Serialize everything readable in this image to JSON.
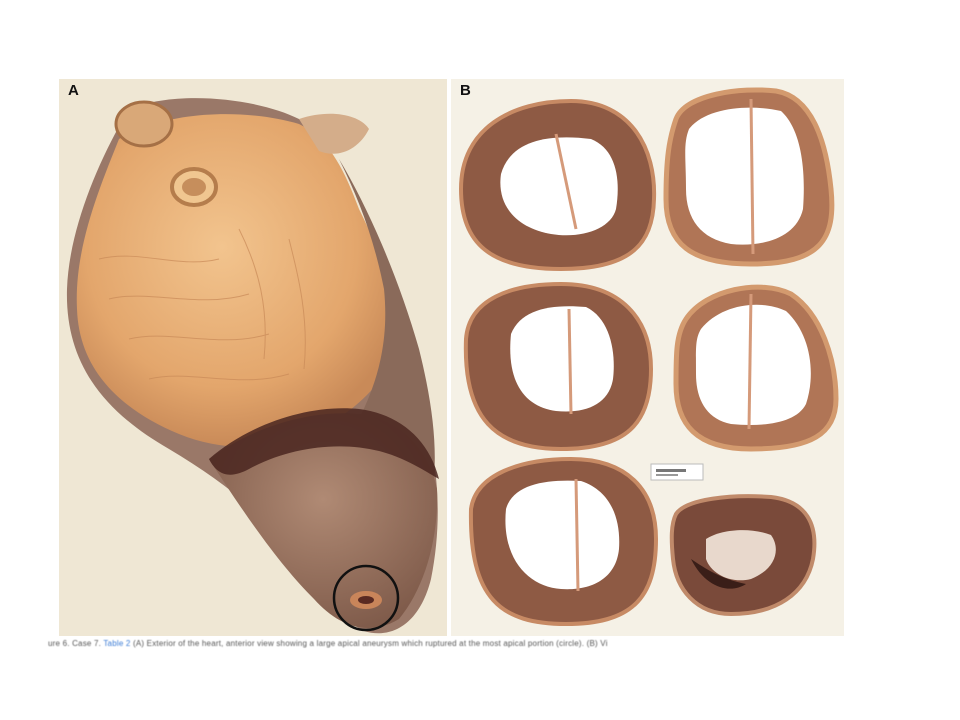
{
  "figure": {
    "panel_a": {
      "label": "A"
    },
    "panel_b": {
      "label": "B"
    },
    "specimen_tag": "",
    "caption": {
      "prefix": "ure 6. Case 7.",
      "link": "Table 2",
      "text": "(A) Exterior of the heart, anterior view showing a large apical aneurysm which ruptured at the most apical portion (circle). (B) Vi"
    },
    "colors": {
      "myocardium": "#8e5a44",
      "epicardial_fat": "#e8b07a",
      "background_a": "#efe7d4",
      "background_b": "#f5f1e6",
      "circle": "#111111"
    }
  }
}
